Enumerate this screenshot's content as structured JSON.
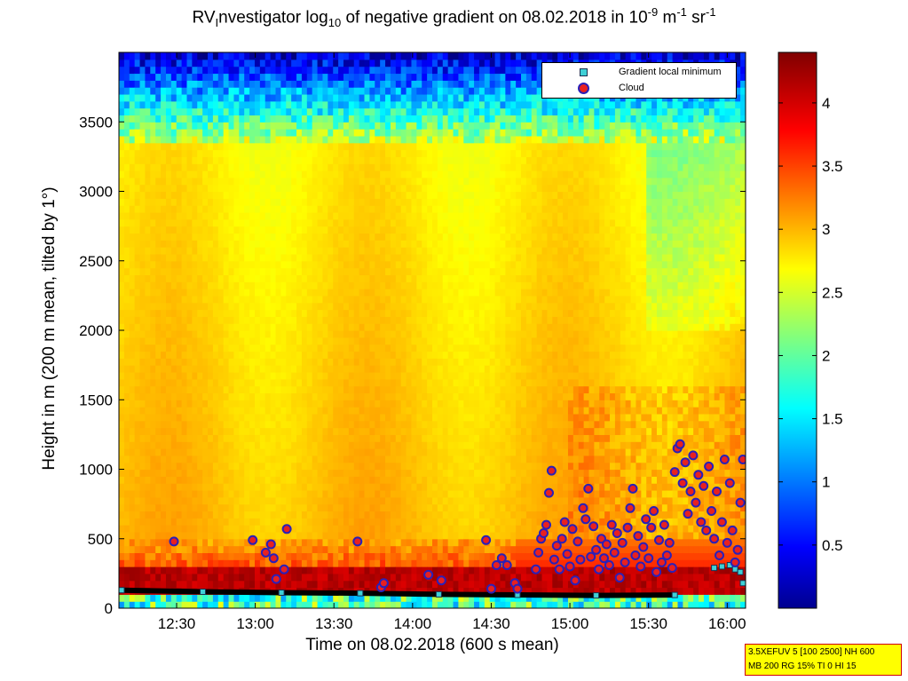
{
  "chart_data": {
    "type": "heatmap",
    "title_prefix": "RV",
    "title_sub1": "I",
    "title_mid": "nvestigator log",
    "title_sub2": "10",
    "title_mid2": " of negative gradient on 08.02.2018 in 10",
    "title_sup1": "-9",
    "title_mid3": " m",
    "title_sup2": "-1",
    "title_mid4": " sr",
    "title_sup3": "-1",
    "xlabel": "Time on 08.02.2018 (600 s mean)",
    "ylabel": "Height in m (200 m mean, tilted by 1°)",
    "x_unit": "minutes since 00:00",
    "xlim": [
      728,
      967
    ],
    "ylim": [
      0,
      4000
    ],
    "x_ticks": [
      {
        "value": 750,
        "label": "12:30"
      },
      {
        "value": 780,
        "label": "13:00"
      },
      {
        "value": 810,
        "label": "13:30"
      },
      {
        "value": 840,
        "label": "14:00"
      },
      {
        "value": 870,
        "label": "14:30"
      },
      {
        "value": 900,
        "label": "15:00"
      },
      {
        "value": 930,
        "label": "15:30"
      },
      {
        "value": 960,
        "label": "16:00"
      }
    ],
    "y_ticks": [
      {
        "value": 0,
        "label": "0"
      },
      {
        "value": 500,
        "label": "500"
      },
      {
        "value": 1000,
        "label": "1000"
      },
      {
        "value": 1500,
        "label": "1500"
      },
      {
        "value": 2000,
        "label": "2000"
      },
      {
        "value": 2500,
        "label": "2500"
      },
      {
        "value": 3000,
        "label": "3000"
      },
      {
        "value": 3500,
        "label": "3500"
      }
    ],
    "colorbar": {
      "colormap": "jet",
      "range": [
        0,
        4.4
      ],
      "ticks": [
        {
          "value": 0.5,
          "label": "0.5"
        },
        {
          "value": 1,
          "label": "1"
        },
        {
          "value": 1.5,
          "label": "1.5"
        },
        {
          "value": 2,
          "label": "2"
        },
        {
          "value": 2.5,
          "label": "2.5"
        },
        {
          "value": 3,
          "label": "3"
        },
        {
          "value": 3.5,
          "label": "3.5"
        },
        {
          "value": 4,
          "label": "4"
        }
      ]
    },
    "legend": {
      "placement": "top-right",
      "entries": [
        {
          "label": "Gradient local minimum",
          "marker": "square",
          "color": "#3fd0d6"
        },
        {
          "label": "Cloud",
          "marker": "circle",
          "color": "#e82020",
          "edge": "#2a20b8"
        }
      ]
    },
    "cloud_points": [
      [
        749,
        480
      ],
      [
        779,
        490
      ],
      [
        784,
        400
      ],
      [
        786,
        460
      ],
      [
        787,
        360
      ],
      [
        788,
        210
      ],
      [
        792,
        570
      ],
      [
        791,
        280
      ],
      [
        819,
        480
      ],
      [
        828,
        150
      ],
      [
        829,
        180
      ],
      [
        846,
        240
      ],
      [
        851,
        200
      ],
      [
        868,
        490
      ],
      [
        870,
        140
      ],
      [
        872,
        310
      ],
      [
        874,
        360
      ],
      [
        876,
        310
      ],
      [
        879,
        180
      ],
      [
        880,
        140
      ],
      [
        887,
        280
      ],
      [
        888,
        400
      ],
      [
        889,
        500
      ],
      [
        890,
        540
      ],
      [
        891,
        600
      ],
      [
        892,
        830
      ],
      [
        893,
        990
      ],
      [
        894,
        350
      ],
      [
        895,
        450
      ],
      [
        896,
        280
      ],
      [
        897,
        500
      ],
      [
        898,
        620
      ],
      [
        899,
        390
      ],
      [
        900,
        300
      ],
      [
        901,
        570
      ],
      [
        902,
        200
      ],
      [
        903,
        480
      ],
      [
        904,
        350
      ],
      [
        905,
        720
      ],
      [
        906,
        640
      ],
      [
        907,
        860
      ],
      [
        908,
        370
      ],
      [
        909,
        590
      ],
      [
        910,
        420
      ],
      [
        911,
        280
      ],
      [
        912,
        500
      ],
      [
        913,
        360
      ],
      [
        914,
        460
      ],
      [
        915,
        310
      ],
      [
        916,
        600
      ],
      [
        917,
        400
      ],
      [
        918,
        540
      ],
      [
        919,
        220
      ],
      [
        920,
        470
      ],
      [
        921,
        330
      ],
      [
        922,
        580
      ],
      [
        923,
        720
      ],
      [
        924,
        860
      ],
      [
        925,
        380
      ],
      [
        926,
        520
      ],
      [
        927,
        300
      ],
      [
        928,
        440
      ],
      [
        929,
        640
      ],
      [
        930,
        360
      ],
      [
        931,
        580
      ],
      [
        932,
        700
      ],
      [
        933,
        260
      ],
      [
        934,
        490
      ],
      [
        935,
        330
      ],
      [
        936,
        600
      ],
      [
        937,
        380
      ],
      [
        938,
        470
      ],
      [
        939,
        290
      ],
      [
        940,
        980
      ],
      [
        941,
        1150
      ],
      [
        942,
        1180
      ],
      [
        943,
        900
      ],
      [
        944,
        1050
      ],
      [
        945,
        680
      ],
      [
        946,
        840
      ],
      [
        947,
        1100
      ],
      [
        948,
        760
      ],
      [
        949,
        960
      ],
      [
        950,
        620
      ],
      [
        951,
        880
      ],
      [
        952,
        560
      ],
      [
        953,
        1020
      ],
      [
        954,
        700
      ],
      [
        955,
        500
      ],
      [
        956,
        840
      ],
      [
        957,
        380
      ],
      [
        958,
        620
      ],
      [
        959,
        1070
      ],
      [
        960,
        470
      ],
      [
        961,
        900
      ],
      [
        962,
        560
      ],
      [
        963,
        330
      ],
      [
        964,
        420
      ],
      [
        965,
        760
      ],
      [
        966,
        1070
      ]
    ],
    "gradient_minimum_points": [
      [
        729,
        130
      ],
      [
        760,
        118
      ],
      [
        790,
        112
      ],
      [
        820,
        108
      ],
      [
        850,
        100
      ],
      [
        880,
        96
      ],
      [
        910,
        92
      ],
      [
        940,
        95
      ],
      [
        955,
        290
      ],
      [
        958,
        300
      ],
      [
        961,
        310
      ],
      [
        963,
        280
      ],
      [
        965,
        260
      ],
      [
        966,
        180
      ]
    ]
  },
  "infobox": {
    "line1": "3.5XEFUV 5 [100 2500] NH 600",
    "line2": "MB 200 RG 15% TI 0 HI 15"
  }
}
